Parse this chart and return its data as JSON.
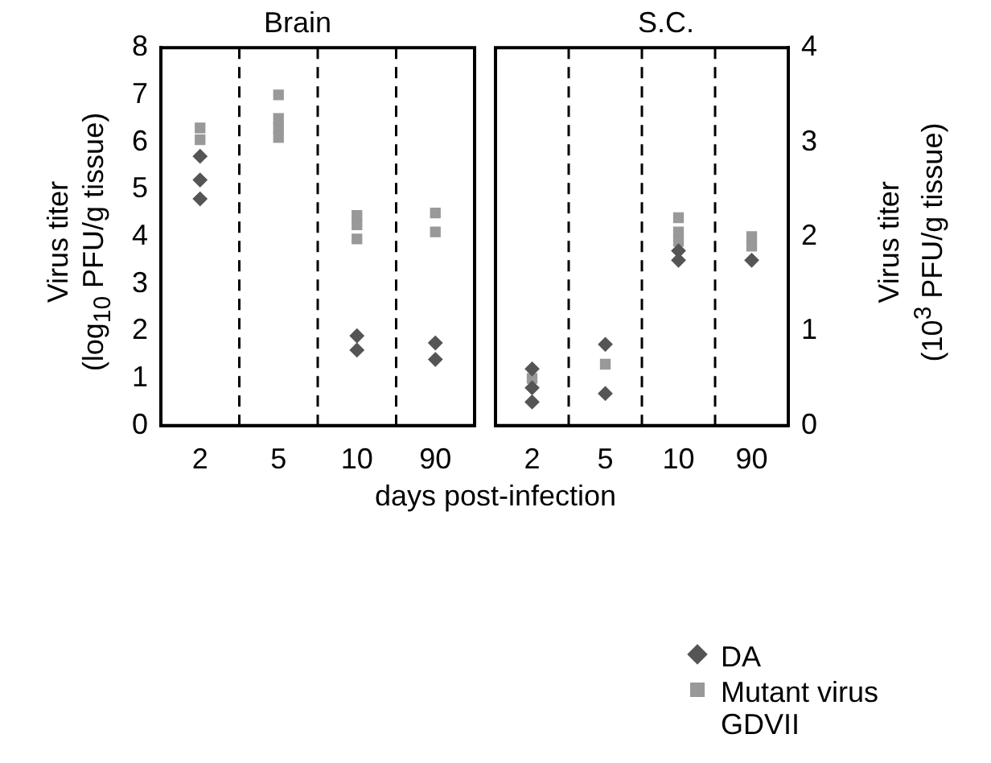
{
  "chart_data": [
    {
      "type": "scatter",
      "title": "Brain",
      "xlabel": "days post-infection",
      "ylabel": "Virus titer\n(log$_{10}$ PFU/g tissue)",
      "categories": [
        "2",
        "5",
        "10",
        "90"
      ],
      "ylim": [
        0,
        8
      ],
      "yticks": [
        0,
        1,
        2,
        3,
        4,
        5,
        6,
        7,
        8
      ],
      "grid": "x",
      "line_style": "dashed",
      "legend": "bottom right",
      "series": [
        {
          "name": "DA",
          "color": "#555555",
          "marker": "diamond",
          "x": [
            "2",
            "2",
            "2",
            "10",
            "10",
            "90",
            "90"
          ],
          "values": [
            5.7,
            5.2,
            4.8,
            1.9,
            1.6,
            1.75,
            1.4
          ]
        },
        {
          "name": "Mutant virus GDVII",
          "color": "#999999",
          "marker": "square",
          "x": [
            "2",
            "2",
            "5",
            "5",
            "5",
            "5",
            "10",
            "10",
            "10",
            "90",
            "90"
          ],
          "values": [
            6.3,
            6.05,
            7.0,
            6.5,
            6.3,
            6.1,
            4.45,
            4.25,
            3.95,
            4.5,
            4.1
          ]
        }
      ]
    },
    {
      "type": "scatter",
      "title": "S.C.",
      "y2label": "Virus titer\n(10$^{3}$ PFU/g tissue)",
      "categories": [
        "2",
        "5",
        "10",
        "90"
      ],
      "y2lim": [
        0,
        4
      ],
      "y2ticks": [
        0,
        1,
        2,
        3,
        4
      ],
      "grid": "x",
      "line_style": "dashed",
      "series": [
        {
          "color": "#555555",
          "marker": "diamond",
          "axis": "y2",
          "x": [
            "2",
            "2",
            "2",
            "5",
            "5",
            "10",
            "10",
            "90"
          ],
          "values": [
            0.6,
            0.4,
            0.25,
            0.86,
            0.34,
            1.85,
            1.75,
            1.75
          ]
        },
        {
          "color": "#999999",
          "marker": "square",
          "axis": "y2",
          "x": [
            "2",
            "2",
            "5",
            "10",
            "10",
            "10",
            "90",
            "90"
          ],
          "values": [
            0.5,
            null,
            0.65,
            2.2,
            2.05,
            1.95,
            2.0,
            1.9
          ]
        }
      ]
    }
  ]
}
